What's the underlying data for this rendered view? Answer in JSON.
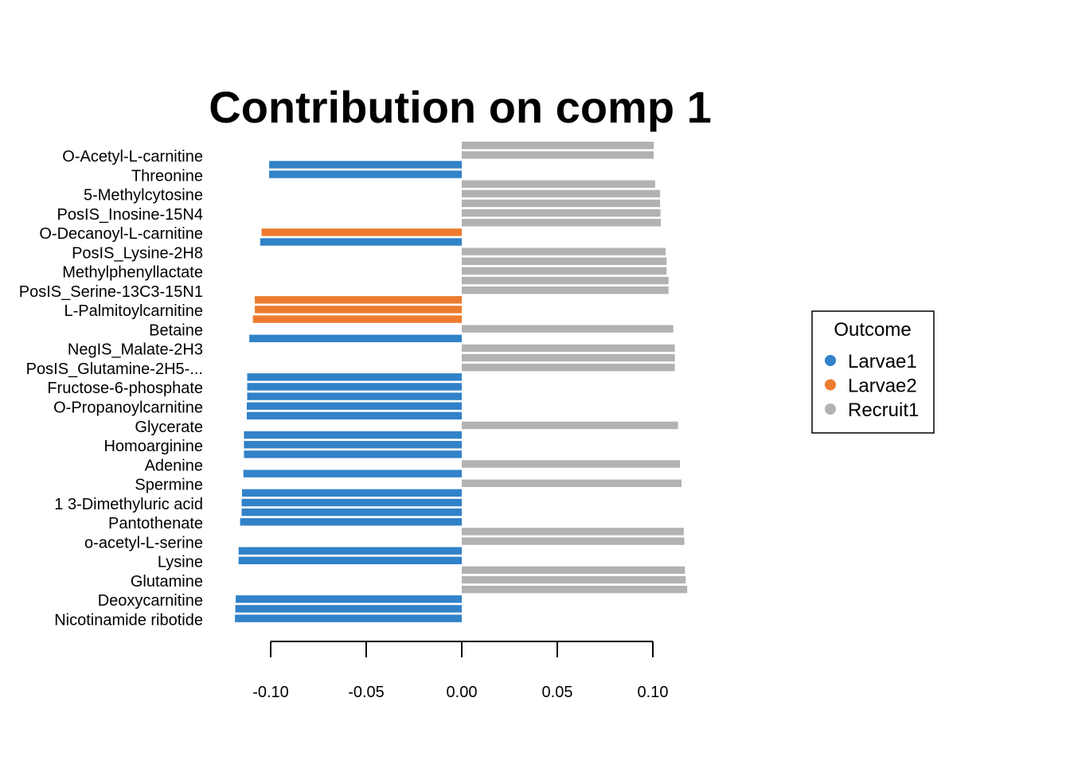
{
  "chart_data": {
    "type": "bar",
    "orientation": "horizontal",
    "title": "Contribution on comp 1",
    "xlabel": "",
    "ylabel": "",
    "xlim": [
      -0.12,
      0.12
    ],
    "xticks": [
      -0.1,
      -0.05,
      0.0,
      0.05,
      0.1
    ],
    "xtick_labels": [
      "-0.10",
      "-0.05",
      "0.00",
      "0.05",
      "0.10"
    ],
    "grid": false,
    "legend": {
      "title": "Outcome",
      "placement": "right",
      "items": [
        {
          "name": "Larvae1",
          "color": "#3182C8"
        },
        {
          "name": "Larvae2",
          "color": "#ED7B2F"
        },
        {
          "name": "Recruit1",
          "color": "#B2B2B2"
        }
      ]
    },
    "row_labels": [
      "O-Acetyl-L-carnitine",
      "Threonine",
      "5-Methylcytosine",
      "PosIS_Inosine-15N4",
      "O-Decanoyl-L-carnitine",
      "PosIS_Lysine-2H8",
      "Methylphenyllactate",
      "PosIS_Serine-13C3-15N1",
      "L-Palmitoylcarnitine",
      "Betaine",
      "NegIS_Malate-2H3",
      "PosIS_Glutamine-2H5-...",
      "Fructose-6-phosphate",
      "O-Propanoylcarnitine",
      "Glycerate",
      "Homoarginine",
      "Adenine",
      "Spermine",
      "1 3-Dimethyluric acid",
      "Pantothenate",
      "o-acetyl-L-serine",
      "Lysine",
      "Glutamine",
      "Deoxycarnitine",
      "Nicotinamide ribotide"
    ],
    "bars": [
      {
        "value": 0.1005,
        "group": "Recruit1"
      },
      {
        "value": 0.1005,
        "group": "Recruit1"
      },
      {
        "value": -0.1008,
        "group": "Larvae1"
      },
      {
        "value": -0.1008,
        "group": "Larvae1"
      },
      {
        "value": 0.1012,
        "group": "Recruit1"
      },
      {
        "value": 0.1038,
        "group": "Recruit1"
      },
      {
        "value": 0.1038,
        "group": "Recruit1"
      },
      {
        "value": 0.104,
        "group": "Recruit1"
      },
      {
        "value": 0.1042,
        "group": "Recruit1"
      },
      {
        "value": -0.1048,
        "group": "Larvae2"
      },
      {
        "value": -0.1055,
        "group": "Larvae1"
      },
      {
        "value": 0.1067,
        "group": "Recruit1"
      },
      {
        "value": 0.1072,
        "group": "Recruit1"
      },
      {
        "value": 0.1072,
        "group": "Recruit1"
      },
      {
        "value": 0.1082,
        "group": "Recruit1"
      },
      {
        "value": 0.1082,
        "group": "Recruit1"
      },
      {
        "value": -0.1083,
        "group": "Larvae2"
      },
      {
        "value": -0.1083,
        "group": "Larvae2"
      },
      {
        "value": -0.1093,
        "group": "Larvae2"
      },
      {
        "value": 0.1107,
        "group": "Recruit1"
      },
      {
        "value": -0.1112,
        "group": "Larvae1"
      },
      {
        "value": 0.1115,
        "group": "Recruit1"
      },
      {
        "value": 0.1115,
        "group": "Recruit1"
      },
      {
        "value": 0.1115,
        "group": "Recruit1"
      },
      {
        "value": -0.1123,
        "group": "Larvae1"
      },
      {
        "value": -0.1123,
        "group": "Larvae1"
      },
      {
        "value": -0.1123,
        "group": "Larvae1"
      },
      {
        "value": -0.1125,
        "group": "Larvae1"
      },
      {
        "value": -0.1125,
        "group": "Larvae1"
      },
      {
        "value": 0.1132,
        "group": "Recruit1"
      },
      {
        "value": -0.114,
        "group": "Larvae1"
      },
      {
        "value": -0.114,
        "group": "Larvae1"
      },
      {
        "value": -0.114,
        "group": "Larvae1"
      },
      {
        "value": 0.1142,
        "group": "Recruit1"
      },
      {
        "value": -0.1143,
        "group": "Larvae1"
      },
      {
        "value": 0.115,
        "group": "Recruit1"
      },
      {
        "value": -0.115,
        "group": "Larvae1"
      },
      {
        "value": -0.1152,
        "group": "Larvae1"
      },
      {
        "value": -0.1152,
        "group": "Larvae1"
      },
      {
        "value": -0.116,
        "group": "Larvae1"
      },
      {
        "value": 0.1162,
        "group": "Recruit1"
      },
      {
        "value": 0.1165,
        "group": "Recruit1"
      },
      {
        "value": -0.1168,
        "group": "Larvae1"
      },
      {
        "value": -0.1168,
        "group": "Larvae1"
      },
      {
        "value": 0.1168,
        "group": "Recruit1"
      },
      {
        "value": 0.1172,
        "group": "Recruit1"
      },
      {
        "value": 0.118,
        "group": "Recruit1"
      },
      {
        "value": -0.1183,
        "group": "Larvae1"
      },
      {
        "value": -0.1185,
        "group": "Larvae1"
      },
      {
        "value": -0.1187,
        "group": "Larvae1"
      }
    ]
  }
}
